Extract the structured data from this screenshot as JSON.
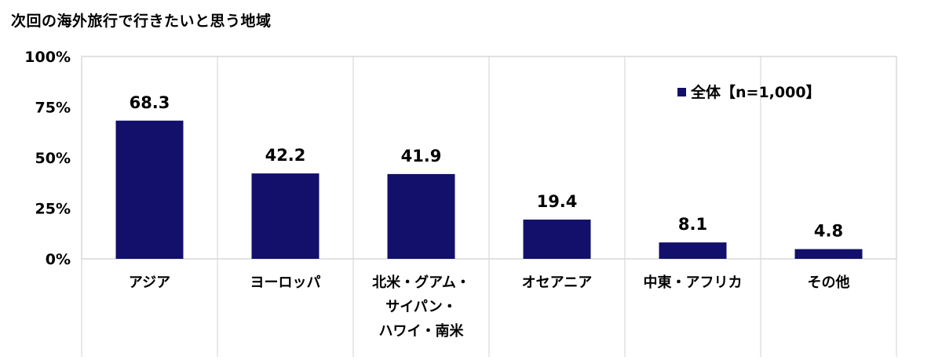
{
  "chart_data": {
    "type": "bar",
    "title": "次回の海外旅行で行きたいと思う地域",
    "categories": [
      "アジア",
      "ヨーロッパ",
      "北米・グアム・サイパン・ハワイ・南米",
      "オセアニア",
      "中東・アフリカ",
      "その他"
    ],
    "category_lines": [
      [
        "アジア"
      ],
      [
        "ヨーロッパ"
      ],
      [
        "北米・グアム・",
        "サイパン・",
        "ハワイ・南米"
      ],
      [
        "オセアニア"
      ],
      [
        "中東・アフリカ"
      ],
      [
        "その他"
      ]
    ],
    "series": [
      {
        "name": "全体【n=1,000】",
        "values": [
          68.3,
          42.2,
          41.9,
          19.4,
          8.1,
          4.8
        ],
        "color": "#13106b"
      }
    ],
    "data_labels": [
      "68.3",
      "42.2",
      "41.9",
      "19.4",
      "8.1",
      "4.8"
    ],
    "ylim": [
      0,
      100
    ],
    "y_ticks": [
      0,
      25,
      50,
      75,
      100
    ],
    "y_tick_labels": [
      "0%",
      "25%",
      "50%",
      "75%",
      "100%"
    ],
    "xlabel": "",
    "ylabel": "",
    "grid": false,
    "legend_position": "top-right",
    "colors": {
      "bar": "#13106b",
      "axis": "#d9d9d9",
      "divider": "#d9d9d9"
    }
  }
}
